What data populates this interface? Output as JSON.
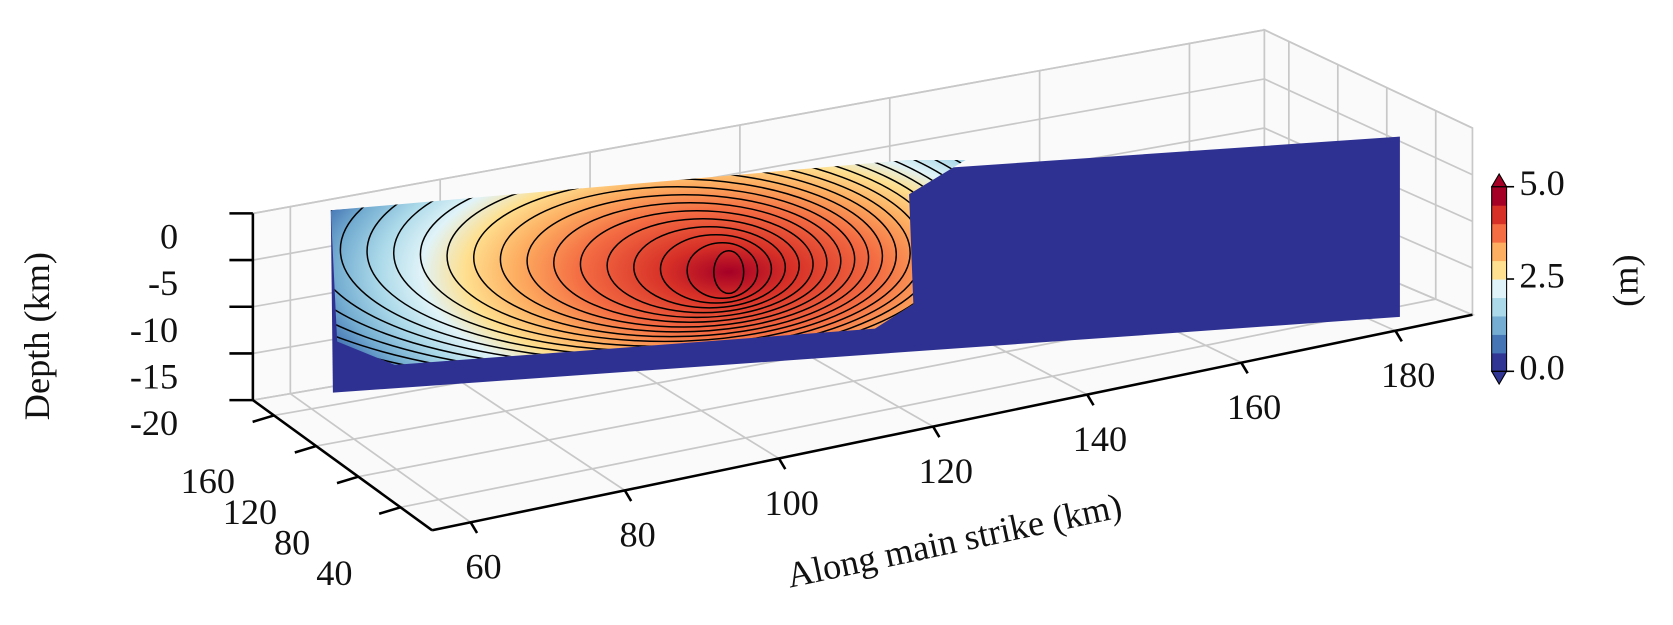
{
  "chart_data": {
    "type": "surface3d",
    "xlabel": "Along main strike (km)",
    "zlabel": "Depth (km)",
    "xlim": [
      55,
      190
    ],
    "xticks": [
      60,
      80,
      100,
      120,
      140,
      160,
      180
    ],
    "ylim": [
      10,
      180
    ],
    "yticks": [
      40,
      80,
      120,
      160
    ],
    "zlim": [
      -20,
      0
    ],
    "zticks": [
      0,
      -5,
      -10,
      -15,
      -20
    ],
    "grid": true,
    "colorbar": {
      "label": "(m)",
      "range": [
        0,
        5
      ],
      "ticks": [
        {
          "value": 0,
          "label": "0.0"
        },
        2.5,
        {
          "value": 5,
          "label": "5.0"
        }
      ],
      "colors": [
        "#313695",
        "#4575b4",
        "#74add1",
        "#abd9e9",
        "#e0f3f8",
        "#fee090",
        "#fdae61",
        "#f46d43",
        "#d73027",
        "#a50026"
      ]
    }
  }
}
